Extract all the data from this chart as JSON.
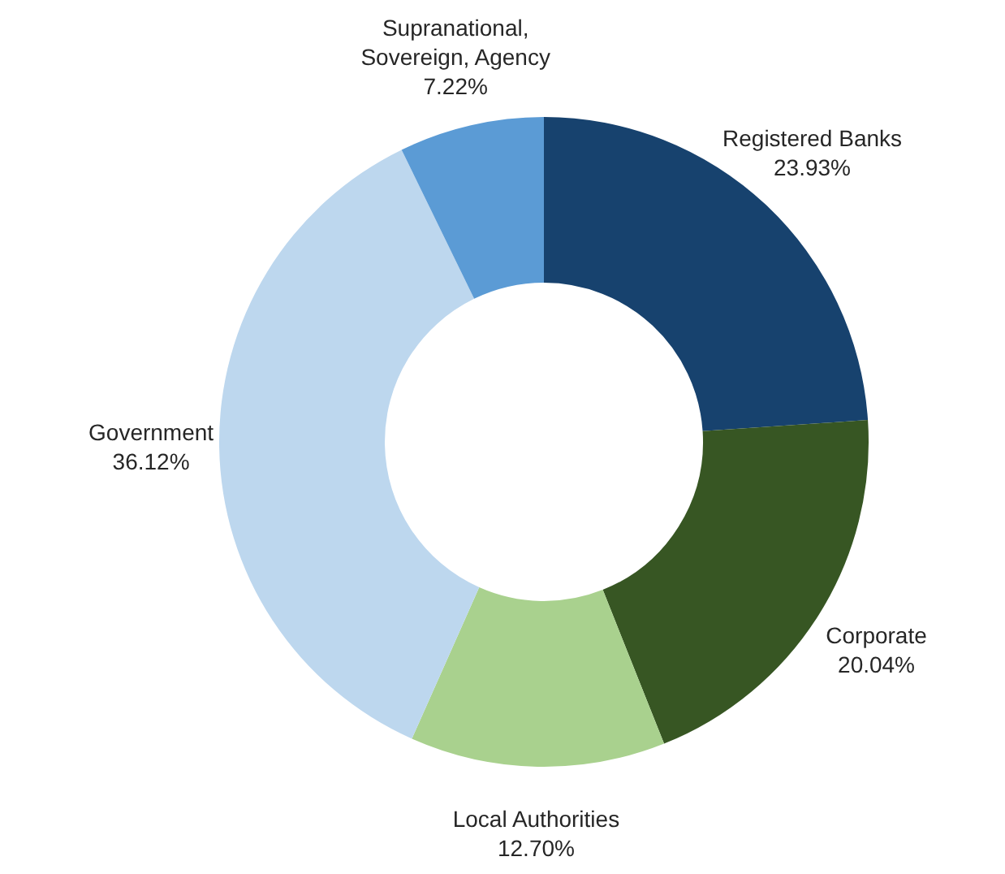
{
  "chart_data": {
    "type": "donut",
    "categories": [
      "Registered Banks",
      "Corporate",
      "Local Authorities",
      "Government",
      "Supranational, Sovereign, Agency"
    ],
    "values": [
      23.93,
      20.04,
      12.7,
      36.12,
      7.22
    ],
    "value_labels": [
      "23.93%",
      "20.04%",
      "12.70%",
      "36.12%",
      "7.22%"
    ],
    "colors": [
      "#17426e",
      "#375623",
      "#a9d18e",
      "#bdd7ee",
      "#5b9bd5"
    ],
    "legend": false
  }
}
